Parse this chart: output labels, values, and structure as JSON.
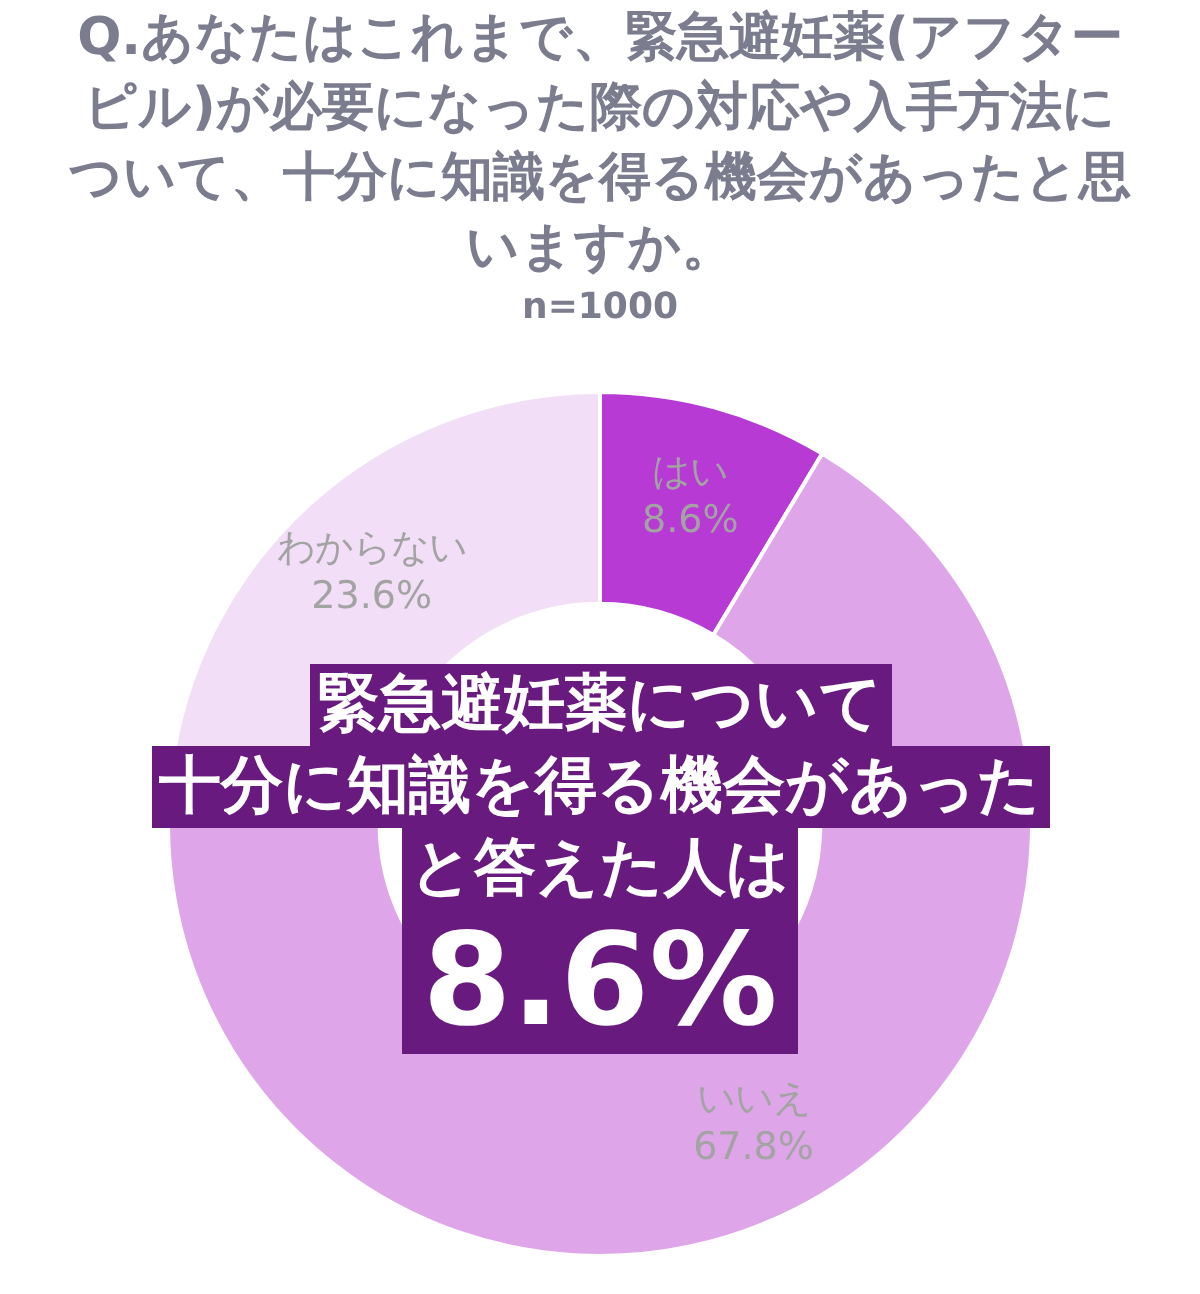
{
  "chart_data": {
    "type": "donut",
    "title": "Q.あなたはこれまで、緊急避妊薬(アフターピル)が必要になった際の対応や入手方法について、十分に知識を得る機会があったと思いますか。",
    "subtitle": "n=1000",
    "categories": [
      "はい",
      "いいえ",
      "わからない"
    ],
    "values": [
      8.6,
      67.8,
      23.6
    ],
    "colors": [
      "#b73ad4",
      "#dea6e9",
      "#f2def7"
    ],
    "value_labels": [
      "8.6%",
      "67.8%",
      "23.6%"
    ],
    "annotations": [
      "緊急避妊薬について",
      "十分に知識を得る機会があった",
      "と答えた人は",
      "8.6%"
    ]
  }
}
